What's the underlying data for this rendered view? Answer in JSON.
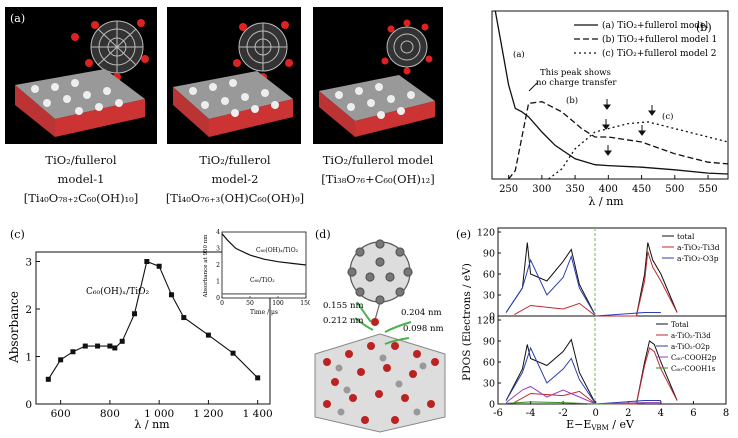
{
  "panel_a": {
    "label": "(a)",
    "models": [
      {
        "lines": [
          "TiO₂/fullerol",
          "model-1",
          "[Ti₄₀O₇₈₊₂C₆₀(OH)₁₀]"
        ]
      },
      {
        "lines": [
          "TiO₂/fullerol",
          "model-2",
          "[Ti₄₀O₇₆₊₃(OH)C₆₀(OH)₉]"
        ]
      },
      {
        "lines": [
          "TiO₂/fullerol model",
          "[Ti₃₈O₇₆+C₆₀(OH)₁₂]"
        ]
      }
    ]
  },
  "panel_b": {
    "label": "(b)",
    "xlabel": "λ / nm",
    "legend": [
      "(a) TiO₂+fullerol model",
      "(b) TiO₂+fullerol model 1",
      "(c) TiO₂+fullerol model 2"
    ],
    "annotation": [
      "This peak shows",
      "no charge transfer"
    ],
    "curve_labels": [
      "(a)",
      "(b)",
      "(c)"
    ]
  },
  "panel_c": {
    "label": "(c)",
    "ylabel": "Absorbance",
    "xlabel": "λ / nm",
    "series_label": "C₆₀(OH)ₓ/TiO₂",
    "inset": {
      "ylabel": "Absorbance at 950 nm",
      "xlabel": "Time / μs",
      "label_top": "C₆₀(OH)ₓ/TiO₂",
      "label_bottom": "C₆₀/TiO₂"
    }
  },
  "panel_d": {
    "label": "(d)",
    "distances": [
      "0.155 nm",
      "0.204 nm",
      "0.212 nm",
      "0.098 nm"
    ]
  },
  "panel_e": {
    "label": "(e)",
    "ylabel": "PDOS (Electrons / eV)",
    "xlabel": "E−E",
    "xlabel_sub": "VBM",
    "xlabel_unit": " / eV",
    "legend_top": [
      "total",
      "a-TiO₂-Ti3d",
      "a-TiO₂-O3p"
    ],
    "legend_bottom": [
      "Total",
      "a-TiO₂-Ti3d",
      "a-TiO₂-O2p",
      "C₆₀-COOH2p",
      "C₆₀-COOH1s"
    ]
  },
  "colors": {
    "black": "#111111",
    "red": "#c0282d",
    "blue": "#2a3fb0",
    "purple": "#9a3bbf",
    "green": "#3a8c2a",
    "dashed_green": "#7ab648"
  },
  "chart_data": [
    {
      "type": "line",
      "title": "",
      "xlabel": "λ / nm",
      "ylabel": "",
      "xlim": [
        225,
        580
      ],
      "x_ticks": [
        250,
        300,
        350,
        400,
        450,
        500,
        550
      ],
      "series": [
        {
          "name": "(a) TiO₂+fullerol model",
          "x": [
            230,
            240,
            250,
            260,
            270,
            280,
            300,
            320,
            350,
            380,
            400,
            450,
            500,
            550,
            580
          ],
          "y": [
            1.0,
            0.78,
            0.56,
            0.42,
            0.4,
            0.37,
            0.28,
            0.2,
            0.12,
            0.085,
            0.08,
            0.07,
            0.055,
            0.035,
            0.03
          ]
        },
        {
          "name": "(b) TiO₂+fullerol model 1",
          "x": [
            250,
            260,
            270,
            280,
            300,
            330,
            360,
            380,
            400,
            450,
            500,
            550,
            580
          ],
          "y": [
            0.0,
            0.05,
            0.25,
            0.45,
            0.46,
            0.4,
            0.3,
            0.25,
            0.25,
            0.22,
            0.15,
            0.1,
            0.09
          ]
        },
        {
          "name": "(c) TiO₂+fullerol model 2",
          "x": [
            310,
            330,
            350,
            380,
            400,
            430,
            460,
            500,
            550,
            580
          ],
          "y": [
            0.0,
            0.06,
            0.18,
            0.28,
            0.3,
            0.33,
            0.34,
            0.3,
            0.25,
            0.22
          ]
        }
      ]
    },
    {
      "type": "scatter",
      "title": "",
      "xlabel": "λ / nm",
      "ylabel": "Absorbance",
      "xlim": [
        500,
        1450
      ],
      "ylim": [
        0,
        3.2
      ],
      "x_ticks": [
        600,
        800,
        1000,
        1200,
        1400
      ],
      "y_ticks": [
        0,
        1,
        2,
        3
      ],
      "series": [
        {
          "name": "C₆₀(OH)ₓ/TiO₂",
          "x": [
            550,
            600,
            650,
            700,
            750,
            800,
            820,
            850,
            900,
            950,
            1000,
            1050,
            1100,
            1200,
            1300,
            1400
          ],
          "y": [
            0.52,
            0.93,
            1.1,
            1.22,
            1.22,
            1.22,
            1.18,
            1.32,
            1.9,
            3.0,
            2.9,
            2.3,
            1.82,
            1.45,
            1.07,
            0.55
          ]
        }
      ]
    },
    {
      "type": "line",
      "title": "",
      "xlabel": "Time / μs",
      "ylabel": "Absorbance at 950 nm",
      "xlim": [
        0,
        150
      ],
      "ylim": [
        0,
        4
      ],
      "x_ticks": [
        0,
        50,
        100,
        150
      ],
      "y_ticks": [
        0,
        1,
        2,
        3,
        4
      ],
      "series": [
        {
          "name": "C₆₀(OH)ₓ/TiO₂",
          "x": [
            0,
            10,
            25,
            50,
            75,
            100,
            125,
            150
          ],
          "y": [
            3.9,
            3.5,
            3.0,
            2.6,
            2.35,
            2.2,
            2.1,
            2.0
          ]
        },
        {
          "name": "C₆₀/TiO₂",
          "x": [
            0,
            50,
            100,
            150
          ],
          "y": [
            0.25,
            0.25,
            0.25,
            0.25
          ]
        }
      ]
    },
    {
      "type": "line",
      "title": "",
      "xlabel": "E−E_VBM / eV",
      "ylabel": "PDOS (Electrons / eV)",
      "xlim": [
        -6,
        8
      ],
      "ylim": [
        0,
        120
      ],
      "x_ticks": [
        -6,
        -4,
        -2,
        0,
        2,
        4,
        6,
        8
      ],
      "y_ticks": [
        0,
        30,
        60,
        90,
        120
      ],
      "series": [
        {
          "name": "total",
          "x": [
            -5.5,
            -4.5,
            -4.2,
            -4,
            -3,
            -2,
            -1.5,
            -1,
            0,
            2.5,
            3,
            3.2,
            3.5,
            4,
            5
          ],
          "y": [
            5,
            40,
            105,
            60,
            50,
            78,
            95,
            45,
            0,
            0,
            60,
            105,
            80,
            60,
            5
          ]
        },
        {
          "name": "a-TiO₂-Ti3d",
          "x": [
            -5,
            -4,
            -2,
            -1,
            0,
            2.5,
            3,
            3.2,
            3.5,
            4,
            5
          ],
          "y": [
            2,
            15,
            10,
            18,
            0,
            0,
            50,
            92,
            70,
            50,
            5
          ]
        },
        {
          "name": "a-TiO₂-O3p",
          "x": [
            -5.5,
            -4.5,
            -4,
            -3,
            -2,
            -1.5,
            -1,
            0,
            3,
            4
          ],
          "y": [
            5,
            40,
            80,
            30,
            55,
            85,
            40,
            0,
            5,
            5
          ]
        }
      ]
    },
    {
      "type": "line",
      "title": "",
      "xlabel": "E−E_VBM / eV",
      "ylabel": "PDOS (Electrons / eV)",
      "xlim": [
        -6,
        8
      ],
      "ylim": [
        0,
        120
      ],
      "x_ticks": [
        -6,
        -4,
        -2,
        0,
        2,
        4,
        6,
        8
      ],
      "y_ticks": [
        0,
        30,
        60,
        90,
        120
      ],
      "series": [
        {
          "name": "Total",
          "x": [
            -5.5,
            -4.5,
            -4.2,
            -4,
            -3,
            -2,
            -1.5,
            -1,
            0,
            2.5,
            3,
            3.3,
            3.6,
            4,
            5
          ],
          "y": [
            5,
            50,
            85,
            65,
            55,
            75,
            92,
            45,
            0,
            0,
            60,
            90,
            85,
            60,
            5
          ]
        },
        {
          "name": "a-TiO₂-Ti3d",
          "x": [
            -5,
            -4,
            -2,
            -1,
            0,
            2.5,
            3,
            3.3,
            3.6,
            4,
            5
          ],
          "y": [
            2,
            15,
            12,
            18,
            0,
            0,
            55,
            80,
            75,
            50,
            5
          ]
        },
        {
          "name": "a-TiO₂-O2p",
          "x": [
            -5.5,
            -4.5,
            -4,
            -3,
            -2,
            -1.5,
            -1,
            0,
            3,
            4
          ],
          "y": [
            5,
            45,
            80,
            30,
            50,
            65,
            35,
            0,
            5,
            5
          ]
        },
        {
          "name": "C₆₀-COOH2p",
          "x": [
            -5.5,
            -4.5,
            -4,
            -3,
            -2,
            -1,
            0,
            3,
            4
          ],
          "y": [
            2,
            20,
            25,
            10,
            20,
            10,
            0,
            2,
            2
          ]
        },
        {
          "name": "C₆₀-COOH1s",
          "x": [
            -5.5,
            -4,
            -2,
            0,
            3
          ],
          "y": [
            1,
            3,
            2,
            0,
            1
          ]
        }
      ]
    }
  ]
}
